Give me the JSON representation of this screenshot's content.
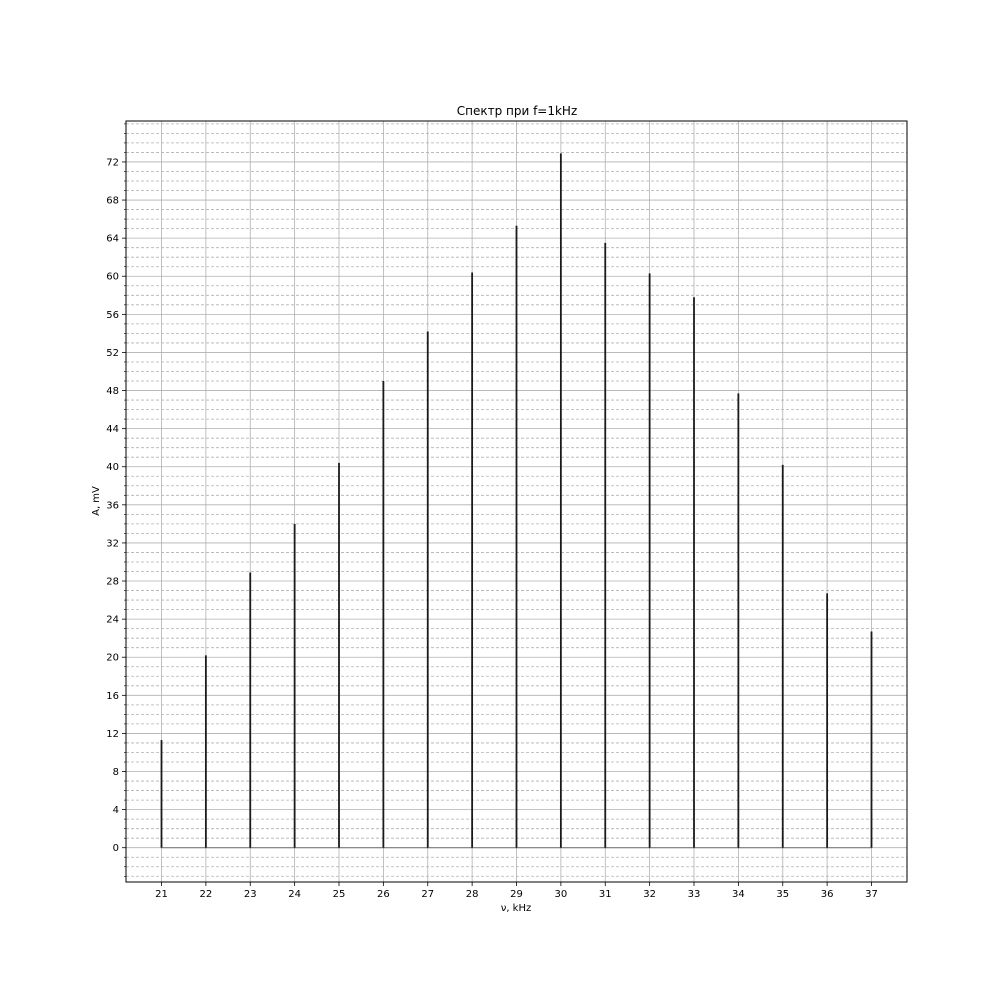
{
  "chart_data": {
    "type": "bar",
    "title": "Спектр при f=1kHz",
    "xlabel": "ν, kHz",
    "ylabel": "A, mV",
    "x": [
      21,
      22,
      23,
      24,
      25,
      26,
      27,
      28,
      29,
      30,
      31,
      32,
      33,
      34,
      35,
      36,
      37
    ],
    "values": [
      11.3,
      20.2,
      28.9,
      34.0,
      40.4,
      49.0,
      54.2,
      60.4,
      65.3,
      72.9,
      63.5,
      60.3,
      57.8,
      47.7,
      40.2,
      26.7,
      22.7
    ],
    "xlim": [
      20.2,
      37.8
    ],
    "ylim": [
      -3.6,
      76.3
    ],
    "xticks": [
      21,
      22,
      23,
      24,
      25,
      26,
      27,
      28,
      29,
      30,
      31,
      32,
      33,
      34,
      35,
      36,
      37
    ],
    "yticks": [
      0,
      4,
      8,
      12,
      16,
      20,
      24,
      28,
      32,
      36,
      40,
      44,
      48,
      52,
      56,
      60,
      64,
      68,
      72
    ],
    "minor_yticks_step": 1,
    "grid": true,
    "baseline": 0,
    "colors": {
      "stem": "#1a1a1a",
      "major_grid": "#b0b0b0",
      "minor_grid": "#b0b0b0",
      "baseline": "#7f7f7f",
      "frame": "#000000"
    }
  }
}
